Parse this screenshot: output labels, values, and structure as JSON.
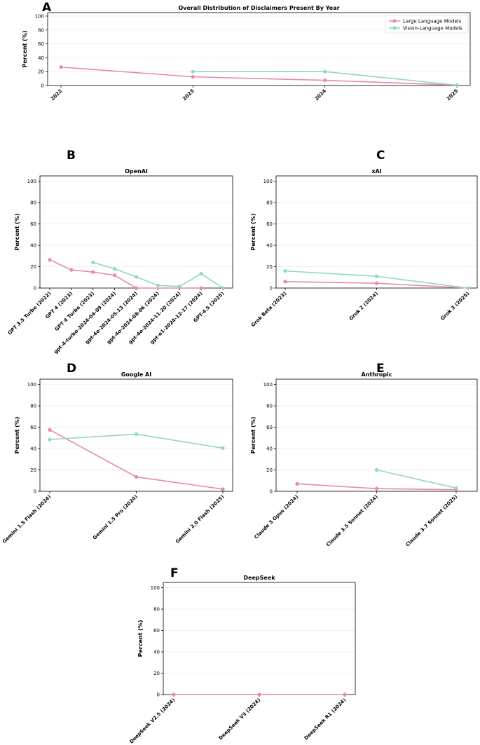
{
  "colors": {
    "llm": "#e98aa8",
    "vlm": "#8ed9c3",
    "grid": "#e6e6e6",
    "axis": "#000000"
  },
  "chart_data": [
    {
      "type": "line",
      "panel": "A",
      "title": "Overall Distribution of Disclaimers Present By Year",
      "ylabel": "Percent (%)",
      "ylim": [
        0,
        105
      ],
      "yticks": [
        0,
        20,
        40,
        60,
        80,
        100
      ],
      "categories": [
        "2022",
        "2023",
        "2024",
        "2025"
      ],
      "legend": {
        "placement": "top-right",
        "entries": [
          "Large Language Models",
          "Vision-Language Models"
        ]
      },
      "series": [
        {
          "name": "Large Language Models",
          "key": "llm",
          "values": [
            26.5,
            12.5,
            7.5,
            0.5
          ]
        },
        {
          "name": "Vision-Language Models",
          "key": "vlm",
          "values": [
            null,
            20,
            20,
            0.5
          ]
        }
      ]
    },
    {
      "type": "line",
      "panel": "B",
      "title": "OpenAI",
      "ylabel": "Percent (%)",
      "ylim": [
        0,
        105
      ],
      "yticks": [
        0,
        20,
        40,
        60,
        80,
        100
      ],
      "categories": [
        "GPT 3.5 Turbo (2022)",
        "GPT 4 (2023)",
        "GPT 4 Turbo (2023)",
        "gpt-4-turbo-2024-04-09 (2024)",
        "gpt-4o-2024-05-13 (2024)",
        "gpt-4o-2024-08-06 (2024)",
        "gpt-4o-2024-11-20 (2024)",
        "gpt-o1-2024-12-17 (2024)",
        "GPT-4.5 (2025)"
      ],
      "series": [
        {
          "name": "Large Language Models",
          "key": "llm",
          "values": [
            26.5,
            17,
            15,
            12,
            0,
            null,
            null,
            0,
            null
          ]
        },
        {
          "name": "Vision-Language Models",
          "key": "vlm",
          "values": [
            null,
            null,
            24,
            18,
            10.5,
            2.5,
            1.5,
            13.5,
            0
          ]
        }
      ]
    },
    {
      "type": "line",
      "panel": "C",
      "title": "xAI",
      "ylabel": "Percent (%)",
      "ylim": [
        0,
        105
      ],
      "yticks": [
        0,
        20,
        40,
        60,
        80,
        100
      ],
      "categories": [
        "Grok Beta (2023)",
        "Grok 2 (2024)",
        "Grok 3 (2025)"
      ],
      "series": [
        {
          "name": "Large Language Models",
          "key": "llm",
          "values": [
            6,
            4.5,
            0
          ]
        },
        {
          "name": "Vision-Language Models",
          "key": "vlm",
          "values": [
            16,
            11,
            0
          ]
        }
      ]
    },
    {
      "type": "line",
      "panel": "D",
      "title": "Google AI",
      "ylabel": "Percent (%)",
      "ylim": [
        0,
        105
      ],
      "yticks": [
        0,
        20,
        40,
        60,
        80,
        100
      ],
      "categories": [
        "Gemini 1.5 Flash (2024)",
        "Gemini 1.5 Pro (2024)",
        "Gemini 2.0 Flash (2025)"
      ],
      "series": [
        {
          "name": "Large Language Models",
          "key": "llm",
          "values": [
            57.5,
            13.5,
            2
          ]
        },
        {
          "name": "Vision-Language Models",
          "key": "vlm",
          "values": [
            48.5,
            53.5,
            40.5
          ]
        }
      ]
    },
    {
      "type": "line",
      "panel": "E",
      "title": "Anthropic",
      "ylabel": "Percent (%)",
      "ylim": [
        0,
        105
      ],
      "yticks": [
        0,
        20,
        40,
        60,
        80,
        100
      ],
      "categories": [
        "Claude 3 Opus (2024)",
        "Claude 3.5 Sonnet (2024)",
        "Claude 3.7 Sonnet (2025)"
      ],
      "series": [
        {
          "name": "Large Language Models",
          "key": "llm",
          "values": [
            7,
            2.5,
            1.5
          ]
        },
        {
          "name": "Vision-Language Models",
          "key": "vlm",
          "values": [
            null,
            20,
            3
          ]
        }
      ]
    },
    {
      "type": "line",
      "panel": "F",
      "title": "DeepSeek",
      "ylabel": "Percent (%)",
      "ylim": [
        0,
        105
      ],
      "yticks": [
        0,
        20,
        40,
        60,
        80,
        100
      ],
      "categories": [
        "DeepSeek V2.5 (2024)",
        "DeepSeek V3 (2024)",
        "DeepSeek R1 (2024)"
      ],
      "series": [
        {
          "name": "Large Language Models",
          "key": "llm",
          "values": [
            0,
            0,
            0
          ]
        }
      ]
    }
  ]
}
